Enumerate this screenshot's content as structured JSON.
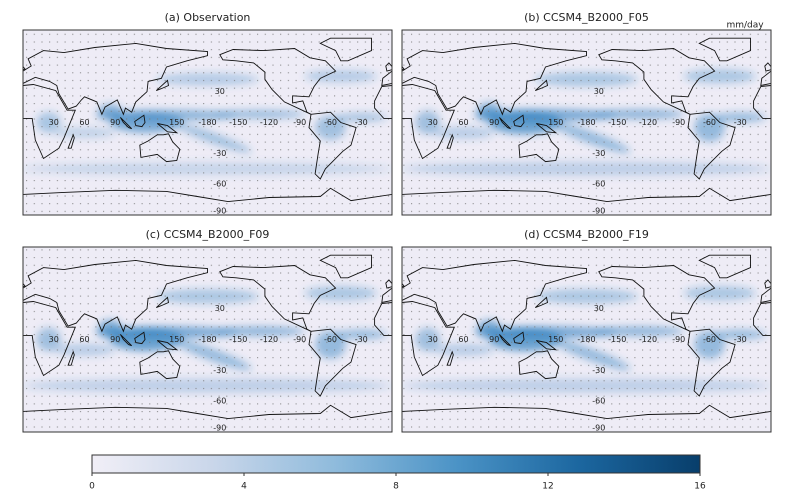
{
  "unit": "mm/day",
  "panels": [
    {
      "title": "(a) Observation"
    },
    {
      "title": "(b) CCSM4_B2000_F05"
    },
    {
      "title": "(c) CCSM4_B2000_F09"
    },
    {
      "title": "(d) CCSM4_B2000_F19"
    }
  ],
  "lon_ticks": [
    30,
    60,
    90,
    150,
    -180,
    -150,
    -120,
    -90,
    -60,
    -30
  ],
  "lat_ticks": [
    30,
    -30,
    -60,
    -90
  ],
  "colorbar": {
    "range": [
      0,
      16
    ],
    "ticks": [
      0,
      4,
      8,
      12,
      16
    ],
    "colors": [
      "#f1eff7",
      "#c9d6ea",
      "#8fbbdc",
      "#4b93c6",
      "#1c67a0",
      "#083e6b"
    ]
  }
}
